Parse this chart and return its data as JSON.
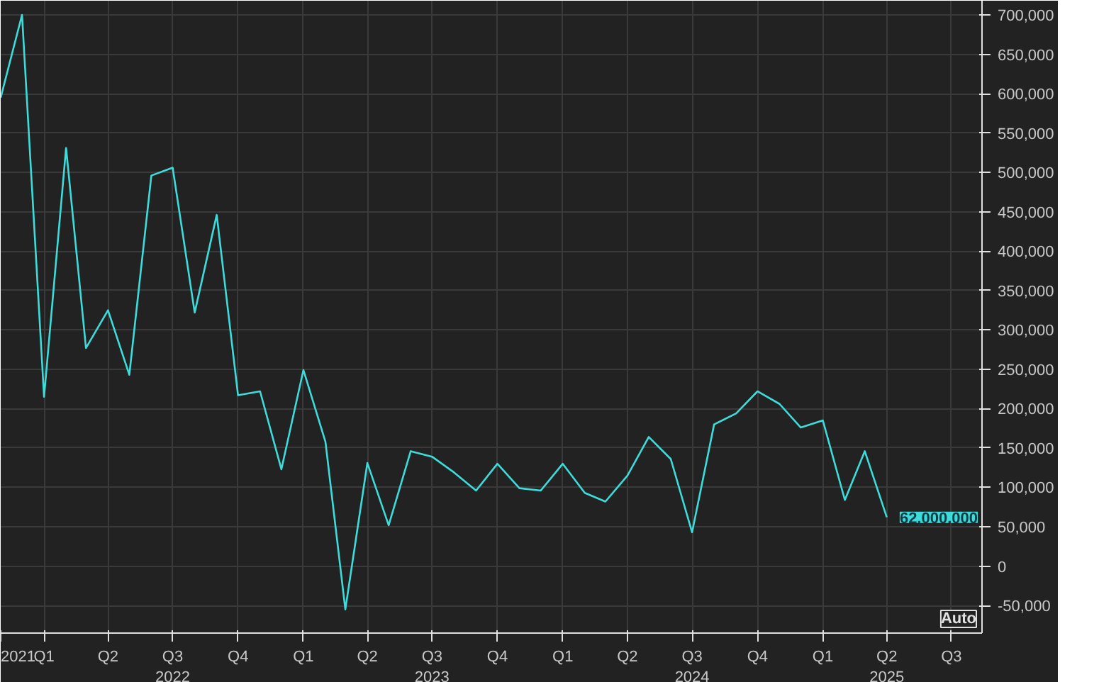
{
  "chart_data": {
    "type": "line",
    "x": [
      "2021-11",
      "2021-12",
      "2022-01",
      "2022-02",
      "2022-03",
      "2022-04",
      "2022-05",
      "2022-06",
      "2022-07",
      "2022-08",
      "2022-09",
      "2022-10",
      "2022-11",
      "2022-12",
      "2023-01",
      "2023-02",
      "2023-03",
      "2023-04",
      "2023-05",
      "2023-06",
      "2023-07",
      "2023-08",
      "2023-09",
      "2023-10",
      "2023-11",
      "2023-12",
      "2024-01",
      "2024-02",
      "2024-03",
      "2024-04",
      "2024-05",
      "2024-06",
      "2024-07",
      "2024-08",
      "2024-09",
      "2024-10",
      "2024-11",
      "2024-12",
      "2025-01",
      "2025-02",
      "2025-03",
      "2025-04"
    ],
    "series": [
      {
        "color": "#3ddbd9",
        "values": [
          595000,
          700000,
          215000,
          531000,
          277000,
          325000,
          243000,
          496000,
          506000,
          322000,
          446000,
          217000,
          222000,
          123000,
          249000,
          158000,
          -55000,
          131000,
          52000,
          146000,
          139000,
          119000,
          96000,
          130000,
          99000,
          96000,
          130000,
          93000,
          82000,
          115000,
          164000,
          136000,
          43000,
          180000,
          194000,
          222000,
          206000,
          176000,
          185000,
          84000,
          146000,
          62000
        ]
      }
    ],
    "xlim": [
      "2021-11-01",
      "2025-08-13"
    ],
    "xticks": [
      {
        "value": "2021-11-01",
        "label": "2021"
      },
      {
        "value": "2022-01-01",
        "label": "Q1"
      },
      {
        "value": "2022-04-01",
        "label": "Q2"
      },
      {
        "value": "2022-07-01",
        "label": "Q3\n2022"
      },
      {
        "value": "2022-10-01",
        "label": "Q4"
      },
      {
        "value": "2023-01-01",
        "label": "Q1"
      },
      {
        "value": "2023-04-01",
        "label": "Q2"
      },
      {
        "value": "2023-07-01",
        "label": "Q3\n2023"
      },
      {
        "value": "2023-10-01",
        "label": "Q4"
      },
      {
        "value": "2024-01-01",
        "label": "Q1"
      },
      {
        "value": "2024-04-01",
        "label": "Q2"
      },
      {
        "value": "2024-07-01",
        "label": "Q3\n2024"
      },
      {
        "value": "2024-10-01",
        "label": "Q4"
      },
      {
        "value": "2025-01-01",
        "label": "Q1"
      },
      {
        "value": "2025-04-01",
        "label": "Q2\n2025"
      },
      {
        "value": "2025-07-01",
        "label": "Q3"
      }
    ],
    "ylim": [
      -85000,
      718000
    ],
    "yticks": [
      {
        "value": -50000,
        "label": "-50,000"
      },
      0,
      {
        "value": 50000,
        "label": "50,000"
      },
      {
        "value": 100000,
        "label": "100,000"
      },
      {
        "value": 150000,
        "label": "150,000"
      },
      {
        "value": 200000,
        "label": "200,000"
      },
      {
        "value": 250000,
        "label": "250,000"
      },
      {
        "value": 300000,
        "label": "300,000"
      },
      {
        "value": 350000,
        "label": "350,000"
      },
      {
        "value": 400000,
        "label": "400,000"
      },
      {
        "value": 450000,
        "label": "450,000"
      },
      {
        "value": 500000,
        "label": "500,000"
      },
      {
        "value": 550000,
        "label": "550,000"
      },
      {
        "value": 600000,
        "label": "600,000"
      },
      {
        "value": 650000,
        "label": "650,000"
      },
      {
        "value": 700000,
        "label": "700,000"
      }
    ],
    "grid": true,
    "annotations": [
      {
        "text": "62,000.000",
        "x": "2025-04",
        "y": 62000
      },
      "Auto"
    ]
  }
}
